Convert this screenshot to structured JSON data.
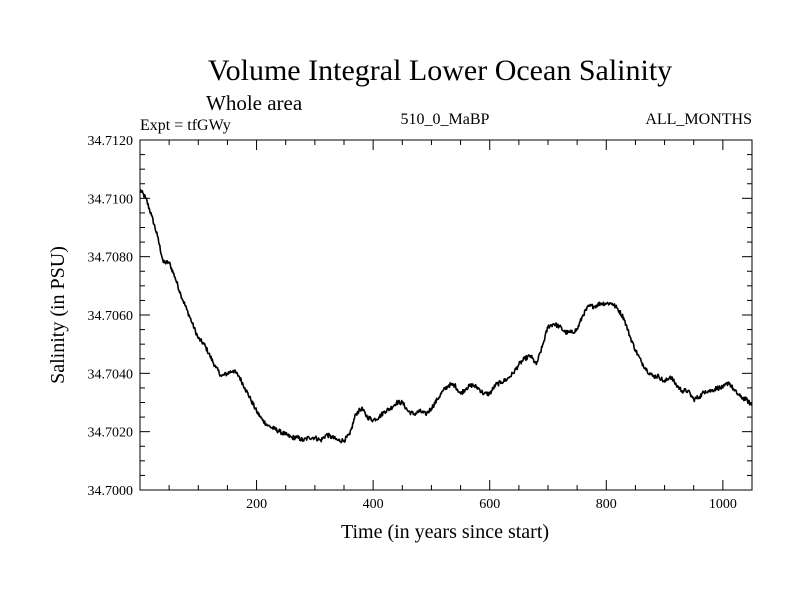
{
  "chart_data": {
    "type": "line",
    "title": "Volume Integral Lower Ocean Salinity",
    "subtitle": "Whole area",
    "annotations": {
      "experiment": "Expt = tfGWy",
      "period": "510_0_MaBP",
      "months": "ALL_MONTHS"
    },
    "xlabel": "Time (in years since start)",
    "ylabel": "Salinity (in PSU)",
    "xlim": [
      0,
      1050
    ],
    "ylim": [
      34.7,
      34.712
    ],
    "x_ticks": [
      200,
      400,
      600,
      800,
      1000
    ],
    "x_tick_labels": [
      "200",
      "400",
      "600",
      "800",
      "1000"
    ],
    "y_ticks": [
      34.7,
      34.702,
      34.704,
      34.706,
      34.708,
      34.71,
      34.712
    ],
    "y_tick_labels": [
      "34.7000",
      "34.7020",
      "34.7040",
      "34.7060",
      "34.7080",
      "34.7100",
      "34.7120"
    ],
    "series": [
      {
        "name": "Salinity",
        "x": [
          0,
          10,
          20,
          30,
          40,
          50,
          60,
          70,
          80,
          90,
          100,
          110,
          120,
          130,
          140,
          150,
          160,
          170,
          180,
          190,
          200,
          210,
          220,
          230,
          240,
          250,
          260,
          270,
          280,
          290,
          300,
          310,
          320,
          330,
          340,
          350,
          360,
          370,
          380,
          390,
          400,
          410,
          420,
          430,
          440,
          450,
          460,
          470,
          480,
          490,
          500,
          510,
          520,
          530,
          540,
          550,
          560,
          570,
          580,
          590,
          600,
          610,
          620,
          630,
          640,
          650,
          660,
          670,
          680,
          690,
          700,
          710,
          720,
          730,
          740,
          750,
          760,
          770,
          780,
          790,
          800,
          810,
          820,
          830,
          840,
          850,
          860,
          870,
          880,
          890,
          900,
          910,
          920,
          930,
          940,
          950,
          960,
          970,
          980,
          990,
          1000,
          1010,
          1020,
          1030,
          1040,
          1050
        ],
        "values": [
          34.7103,
          34.71,
          34.7094,
          34.7087,
          34.7078,
          34.7078,
          34.7073,
          34.7067,
          34.7062,
          34.7057,
          34.7052,
          34.705,
          34.7046,
          34.7042,
          34.7039,
          34.704,
          34.7041,
          34.7039,
          34.7035,
          34.7031,
          34.7027,
          34.7024,
          34.7022,
          34.7021,
          34.702,
          34.7019,
          34.7018,
          34.7018,
          34.7017,
          34.7018,
          34.7018,
          34.7017,
          34.7019,
          34.7018,
          34.7017,
          34.7017,
          34.7019,
          34.7026,
          34.7028,
          34.7025,
          34.7024,
          34.7025,
          34.7027,
          34.7028,
          34.703,
          34.703,
          34.7027,
          34.7026,
          34.7027,
          34.7026,
          34.7028,
          34.7031,
          34.7034,
          34.7036,
          34.7036,
          34.7033,
          34.7035,
          34.7036,
          34.7035,
          34.7033,
          34.7033,
          34.7036,
          34.7037,
          34.7038,
          34.704,
          34.7043,
          34.7045,
          34.7046,
          34.7043,
          34.7049,
          34.7056,
          34.7057,
          34.7056,
          34.7054,
          34.7054,
          34.7055,
          34.706,
          34.7063,
          34.7063,
          34.7064,
          34.7064,
          34.7064,
          34.7062,
          34.7059,
          34.7053,
          34.7048,
          34.7044,
          34.7041,
          34.7039,
          34.7039,
          34.7037,
          34.7039,
          34.7036,
          34.7034,
          34.7034,
          34.7031,
          34.7032,
          34.7034,
          34.7034,
          34.7035,
          34.7035,
          34.7037,
          34.7034,
          34.7032,
          34.7031,
          34.7029
        ]
      }
    ],
    "grid": false,
    "legend": "none"
  }
}
